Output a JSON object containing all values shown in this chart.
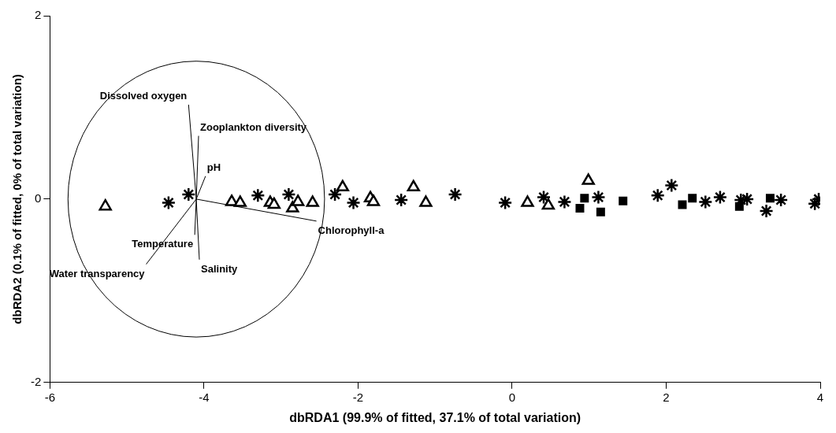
{
  "chart_data": {
    "type": "scatter",
    "xlabel": "dbRDA1 (99.9% of fitted, 37.1% of total variation)",
    "ylabel": "dbRDA2 (0.1% of fitted, 0% of total variation)",
    "xlim": [
      -6,
      4
    ],
    "xticks": [
      -6,
      -4,
      -2,
      0,
      2,
      4
    ],
    "ylim": [
      -2,
      2
    ],
    "yticks": [
      -2,
      0,
      2
    ],
    "grid": false,
    "legend": false,
    "series": [
      {
        "marker": "triangle",
        "color": "#000000",
        "x": [
          -5.28,
          -3.64,
          -3.53,
          -3.14,
          -3.09,
          -2.85,
          -2.78,
          -2.59,
          -2.2,
          -1.84,
          -1.8,
          -1.28,
          -1.12,
          0.2,
          0.47,
          0.99
        ],
        "values": [
          -0.08,
          -0.03,
          -0.04,
          -0.04,
          -0.06,
          -0.1,
          -0.03,
          -0.04,
          0.13,
          0.01,
          -0.03,
          0.13,
          -0.04,
          -0.04,
          -0.07,
          0.2
        ]
      },
      {
        "marker": "cross",
        "color": "#000000",
        "x": [
          -4.46,
          -4.2,
          -3.3,
          -2.9,
          -2.3,
          -2.06,
          -1.44,
          -0.74,
          -0.09,
          0.41,
          0.68,
          1.12,
          1.89,
          2.07,
          2.51,
          2.7,
          2.97,
          3.05,
          3.3,
          3.49,
          3.93,
          3.98
        ],
        "values": [
          -0.04,
          0.05,
          0.04,
          0.05,
          0.05,
          -0.04,
          -0.01,
          0.05,
          -0.04,
          0.02,
          -0.03,
          0.02,
          0.04,
          0.15,
          -0.03,
          0.02,
          -0.01,
          0,
          -0.13,
          -0.01,
          -0.05,
          0
        ]
      },
      {
        "marker": "square",
        "color": "#000000",
        "x": [
          0.88,
          0.94,
          1.15,
          1.44,
          2.21,
          2.34,
          2.95,
          3.35
        ],
        "values": [
          -0.1,
          0.01,
          -0.14,
          -0.02,
          -0.06,
          0.01,
          -0.08,
          0.01
        ]
      },
      {
        "type": "line",
        "name": "Dissolved oxygen",
        "color": "#000000",
        "x": [
          -4.1,
          -4.2
        ],
        "values": [
          0,
          1.03
        ]
      },
      {
        "type": "line",
        "name": "Zooplankton diversity",
        "color": "#000000",
        "x": [
          -4.1,
          -4.07
        ],
        "values": [
          0,
          0.69
        ]
      },
      {
        "type": "line",
        "name": "pH",
        "color": "#000000",
        "x": [
          -4.1,
          -3.98
        ],
        "values": [
          0,
          0.25
        ]
      },
      {
        "type": "line",
        "name": "Chlorophyll-a",
        "color": "#000000",
        "x": [
          -4.1,
          -2.54
        ],
        "values": [
          0,
          -0.24
        ]
      },
      {
        "type": "line",
        "name": "Temperature",
        "color": "#000000",
        "x": [
          -4.1,
          -4.12
        ],
        "values": [
          0,
          -0.39
        ]
      },
      {
        "type": "line",
        "name": "Water transparency",
        "color": "#000000",
        "x": [
          -4.1,
          -4.75
        ],
        "values": [
          0,
          -0.71
        ]
      },
      {
        "type": "line",
        "name": "Salinity",
        "color": "#000000",
        "x": [
          -4.1,
          -4.06
        ],
        "values": [
          0,
          -0.66
        ]
      }
    ]
  }
}
